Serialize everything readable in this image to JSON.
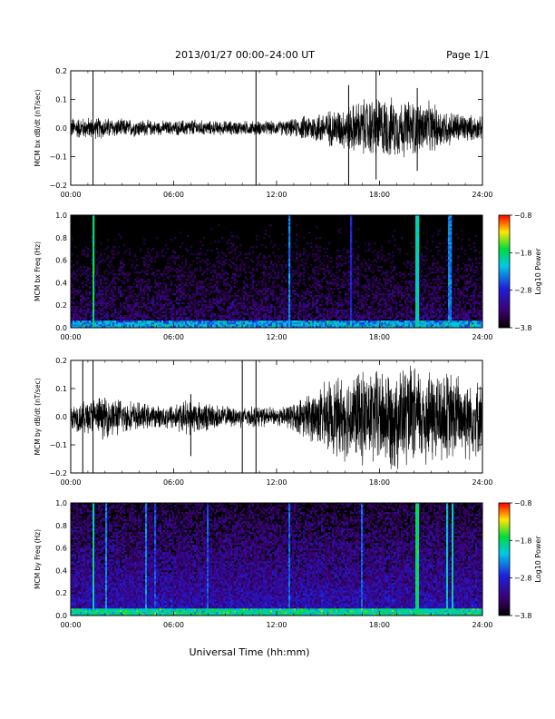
{
  "page": {
    "title": "2013/01/27  00:00–24:00 UT",
    "page_number": "Page 1/1",
    "xlabel": "Universal Time (hh:mm)"
  },
  "chart_data": [
    {
      "type": "line",
      "ylabel": "MCM bx dB/dt (nT/sec)",
      "xlim": [
        0,
        24
      ],
      "ylim": [
        -0.2,
        0.2
      ],
      "x_ticks": [
        "00:00",
        "06:00",
        "12:00",
        "18:00",
        "24:00"
      ],
      "y_ticks": [
        "−0.2",
        "−0.1",
        "0.0",
        "0.1",
        "0.2"
      ],
      "envelope": {
        "hours": [
          0,
          1,
          2,
          3,
          4,
          5,
          6,
          7,
          8,
          9,
          10,
          11,
          12,
          13,
          14,
          15,
          16,
          17,
          18,
          19,
          20,
          21,
          22,
          23,
          24
        ],
        "amplitude": [
          0.03,
          0.03,
          0.03,
          0.025,
          0.025,
          0.02,
          0.02,
          0.025,
          0.02,
          0.02,
          0.02,
          0.02,
          0.02,
          0.025,
          0.04,
          0.05,
          0.06,
          0.08,
          0.09,
          0.08,
          0.08,
          0.07,
          0.05,
          0.04,
          0.03
        ]
      },
      "spikes": [
        {
          "hour": 1.3,
          "low": -0.2,
          "high": 0.2
        },
        {
          "hour": 10.8,
          "low": -0.2,
          "high": 0.2
        },
        {
          "hour": 16.2,
          "low": -0.2,
          "high": 0.15
        },
        {
          "hour": 17.8,
          "low": -0.18,
          "high": 0.2
        },
        {
          "hour": 20.2,
          "low": -0.15,
          "high": 0.14
        }
      ]
    },
    {
      "type": "heatmap",
      "ylabel": "MCM bx Freq (Hz)",
      "xlim": [
        0,
        24
      ],
      "ylim": [
        0,
        1.0
      ],
      "x_ticks": [
        "00:00",
        "06:00",
        "12:00",
        "18:00",
        "24:00"
      ],
      "y_ticks": [
        "0.0",
        "0.2",
        "0.4",
        "0.6",
        "0.8",
        "1.0"
      ],
      "colorbar": {
        "label": "Log10 Power",
        "min": -3.8,
        "max": -0.8,
        "ticks": [
          "−0.8",
          "−1.8",
          "−2.8",
          "−3.8"
        ]
      },
      "background_level": -3.4,
      "bright_lines": [
        {
          "hour": 1.3,
          "level": -1.6
        },
        {
          "hour": 12.7,
          "level": -2.2
        },
        {
          "hour": 16.3,
          "level": -2.6
        },
        {
          "hour": 20.2,
          "level": -1.8
        },
        {
          "hour": 22.1,
          "level": -2.2
        }
      ]
    },
    {
      "type": "line",
      "ylabel": "MCM by dB/dt (nT/sec)",
      "xlim": [
        0,
        24
      ],
      "ylim": [
        -0.2,
        0.2
      ],
      "x_ticks": [
        "00:00",
        "06:00",
        "12:00",
        "18:00",
        "24:00"
      ],
      "y_ticks": [
        "−0.2",
        "−0.1",
        "0.0",
        "0.1",
        "0.2"
      ],
      "envelope": {
        "hours": [
          0,
          1,
          2,
          3,
          4,
          5,
          6,
          7,
          8,
          9,
          10,
          11,
          12,
          13,
          14,
          15,
          16,
          17,
          18,
          19,
          20,
          21,
          22,
          23,
          24
        ],
        "amplitude": [
          0.04,
          0.05,
          0.06,
          0.05,
          0.04,
          0.03,
          0.04,
          0.05,
          0.04,
          0.03,
          0.03,
          0.03,
          0.025,
          0.04,
          0.07,
          0.1,
          0.12,
          0.13,
          0.14,
          0.15,
          0.14,
          0.14,
          0.13,
          0.12,
          0.1
        ]
      },
      "spikes": [
        {
          "hour": 0.7,
          "low": -0.2,
          "high": 0.2
        },
        {
          "hour": 1.3,
          "low": -0.2,
          "high": 0.2
        },
        {
          "hour": 10.0,
          "low": -0.2,
          "high": 0.2
        },
        {
          "hour": 10.8,
          "low": -0.2,
          "high": 0.2
        },
        {
          "hour": 7.0,
          "low": -0.14,
          "high": 0.08
        }
      ]
    },
    {
      "type": "heatmap",
      "ylabel": "MCM by Freq (Hz)",
      "xlim": [
        0,
        24
      ],
      "ylim": [
        0,
        1.0
      ],
      "x_ticks": [
        "00:00",
        "06:00",
        "12:00",
        "18:00",
        "24:00"
      ],
      "y_ticks": [
        "0.0",
        "0.2",
        "0.4",
        "0.6",
        "0.8",
        "1.0"
      ],
      "colorbar": {
        "label": "Log10 Power",
        "min": -3.8,
        "max": -0.8,
        "ticks": [
          "−0.8",
          "−1.8",
          "−2.8",
          "−3.8"
        ]
      },
      "background_level": -3.0,
      "bright_lines": [
        {
          "hour": 1.3,
          "level": -1.8
        },
        {
          "hour": 2.1,
          "level": -2.2
        },
        {
          "hour": 4.4,
          "level": -2.2
        },
        {
          "hour": 4.9,
          "level": -2.4
        },
        {
          "hour": 8.0,
          "level": -2.4
        },
        {
          "hour": 12.7,
          "level": -2.3
        },
        {
          "hour": 17.0,
          "level": -2.3
        },
        {
          "hour": 20.2,
          "level": -1.6
        },
        {
          "hour": 21.9,
          "level": -1.9
        },
        {
          "hour": 22.3,
          "level": -1.8
        }
      ]
    }
  ]
}
